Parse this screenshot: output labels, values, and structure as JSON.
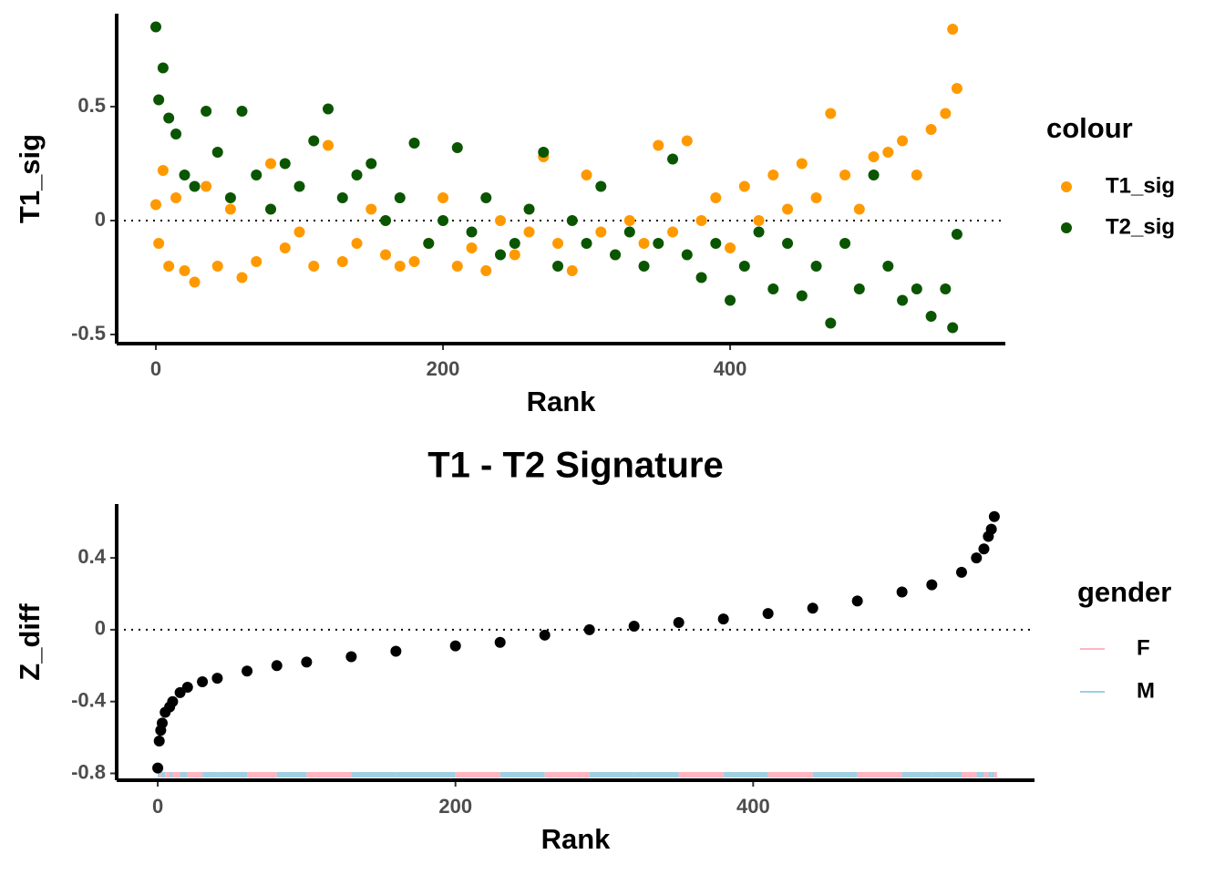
{
  "chart_data": [
    {
      "type": "scatter",
      "x_label": "Rank",
      "y_label": "T1_sig",
      "legend_title": "colour",
      "xlim": [
        -27.3,
        591.7
      ],
      "ylim": [
        -0.54,
        0.908
      ],
      "xticks": [
        0,
        200,
        400
      ],
      "yticks": [
        -0.5,
        0.0,
        0.5
      ],
      "hline": 0,
      "x": [
        0,
        2,
        5,
        9,
        14,
        20,
        27,
        35,
        43,
        52,
        60,
        70,
        80,
        90,
        100,
        110,
        120,
        130,
        140,
        150,
        160,
        170,
        180,
        190,
        200,
        210,
        220,
        230,
        240,
        250,
        260,
        270,
        280,
        290,
        300,
        310,
        320,
        330,
        340,
        350,
        360,
        370,
        380,
        390,
        400,
        410,
        420,
        430,
        440,
        450,
        460,
        470,
        480,
        490,
        500,
        510,
        520,
        530,
        540,
        550,
        555,
        558
      ],
      "series": [
        {
          "name": "T1_sig",
          "color": "#ff9900",
          "values": [
            0.07,
            -0.1,
            0.22,
            -0.2,
            0.1,
            -0.22,
            -0.27,
            0.15,
            -0.2,
            0.05,
            -0.25,
            -0.18,
            0.25,
            -0.12,
            -0.05,
            -0.2,
            0.33,
            -0.18,
            -0.1,
            0.05,
            -0.15,
            -0.2,
            -0.18,
            -0.1,
            0.1,
            -0.2,
            -0.12,
            -0.22,
            0.0,
            -0.15,
            -0.05,
            0.28,
            -0.1,
            -0.22,
            0.2,
            -0.05,
            -0.15,
            0.0,
            -0.1,
            0.33,
            -0.05,
            0.35,
            0.0,
            0.1,
            -0.12,
            0.15,
            0.0,
            0.2,
            0.05,
            0.25,
            0.1,
            0.47,
            0.2,
            0.05,
            0.28,
            0.3,
            0.35,
            0.2,
            0.4,
            0.47,
            0.84,
            0.58
          ]
        },
        {
          "name": "T2_sig",
          "color": "#0a5500",
          "values": [
            0.85,
            0.53,
            0.67,
            0.45,
            0.38,
            0.2,
            0.15,
            0.48,
            0.3,
            0.1,
            0.48,
            0.2,
            0.05,
            0.25,
            0.15,
            0.35,
            0.49,
            0.1,
            0.2,
            0.25,
            0.0,
            0.1,
            0.34,
            -0.1,
            0.0,
            0.32,
            -0.05,
            0.1,
            -0.15,
            -0.1,
            0.05,
            0.3,
            -0.2,
            0.0,
            -0.1,
            0.15,
            -0.15,
            -0.05,
            -0.2,
            -0.1,
            0.27,
            -0.15,
            -0.25,
            -0.1,
            -0.35,
            -0.2,
            -0.05,
            -0.3,
            -0.1,
            -0.33,
            -0.2,
            -0.45,
            -0.1,
            -0.3,
            0.2,
            -0.2,
            -0.35,
            -0.3,
            -0.42,
            -0.3,
            -0.47,
            -0.06
          ]
        }
      ]
    },
    {
      "type": "scatter",
      "title": "T1 - T2 Signature",
      "x_label": "Rank",
      "y_label": "Z_diff",
      "legend_title": "gender",
      "xlim": [
        -27.6,
        589
      ],
      "ylim": [
        -0.838,
        0.7
      ],
      "xticks": [
        0,
        200,
        400
      ],
      "yticks": [
        -0.8,
        -0.4,
        0.0,
        0.4
      ],
      "hline": 0,
      "x": [
        0,
        1,
        2,
        3,
        5,
        8,
        10,
        15,
        20,
        30,
        40,
        60,
        80,
        100,
        130,
        160,
        200,
        230,
        260,
        290,
        320,
        350,
        380,
        410,
        440,
        470,
        500,
        520,
        540,
        550,
        555,
        558,
        560,
        562
      ],
      "series": [
        {
          "name": "Z_diff",
          "color": "#000000",
          "values": [
            -0.77,
            -0.62,
            -0.56,
            -0.52,
            -0.46,
            -0.43,
            -0.4,
            -0.35,
            -0.32,
            -0.29,
            -0.27,
            -0.23,
            -0.2,
            -0.18,
            -0.15,
            -0.12,
            -0.09,
            -0.07,
            -0.03,
            0.0,
            0.02,
            0.04,
            0.06,
            0.09,
            0.12,
            0.16,
            0.21,
            0.25,
            0.32,
            0.4,
            0.45,
            0.52,
            0.56,
            0.63
          ]
        }
      ],
      "gender_levels": [
        {
          "name": "F",
          "color": "#ffb6c1"
        },
        {
          "name": "M",
          "color": "#9fcfe3"
        }
      ],
      "gender": [
        "M",
        "F",
        "M",
        "M",
        "F",
        "M",
        "F",
        "M",
        "F",
        "M",
        "M",
        "F",
        "M",
        "F",
        "M",
        "M",
        "F",
        "M",
        "F",
        "M",
        "M",
        "F",
        "M",
        "F",
        "M",
        "F",
        "M",
        "M",
        "F",
        "M",
        "F",
        "M",
        "M",
        "F"
      ]
    }
  ]
}
